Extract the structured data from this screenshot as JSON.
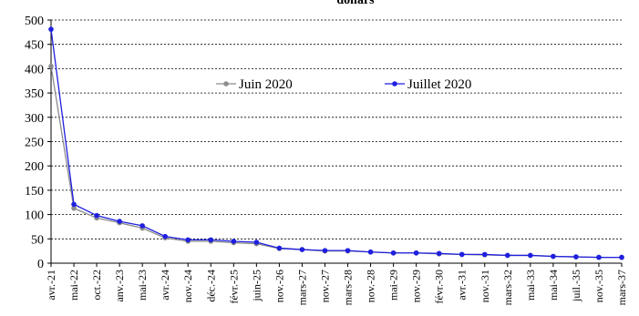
{
  "chart_data": {
    "type": "line",
    "title": "dollars",
    "xlabel": "",
    "ylabel": "",
    "ylim": [
      0,
      500
    ],
    "yticks": [
      0,
      50,
      100,
      150,
      200,
      250,
      300,
      350,
      400,
      450,
      500
    ],
    "grid": "horizontal dashed",
    "legend_position": "top-center",
    "categories": [
      "avr.-21",
      "mai-22",
      "oct.-22",
      "anv.-23",
      "mai-23",
      "avr.-24",
      "nov.-24",
      "déc.-24",
      "févr.-25",
      "juin-25",
      "nov.-26",
      "mars-27",
      "nov.-27",
      "mars-28",
      "nov.-28",
      "mai-29",
      "nov.-29",
      "févr.-30",
      "avr.-31",
      "nov.-31",
      "mars-32",
      "mai-33",
      "mai-34",
      "juil.-35",
      "nov.-35",
      "mars-37"
    ],
    "series": [
      {
        "name": "Juin 2020",
        "color": "#8c8c8c",
        "values": [
          405,
          113,
          93,
          83,
          72,
          52,
          45,
          45,
          42,
          40,
          30,
          28,
          25,
          25,
          23,
          21,
          21,
          19,
          18,
          17,
          16,
          16,
          14,
          13,
          12,
          12
        ]
      },
      {
        "name": "Juillet 2020",
        "color": "#1f1fe0",
        "values": [
          481,
          121,
          98,
          86,
          77,
          55,
          48,
          48,
          45,
          43,
          31,
          28,
          26,
          26,
          23,
          21,
          21,
          20,
          18,
          18,
          16,
          16,
          14,
          13,
          12,
          12
        ]
      }
    ]
  }
}
